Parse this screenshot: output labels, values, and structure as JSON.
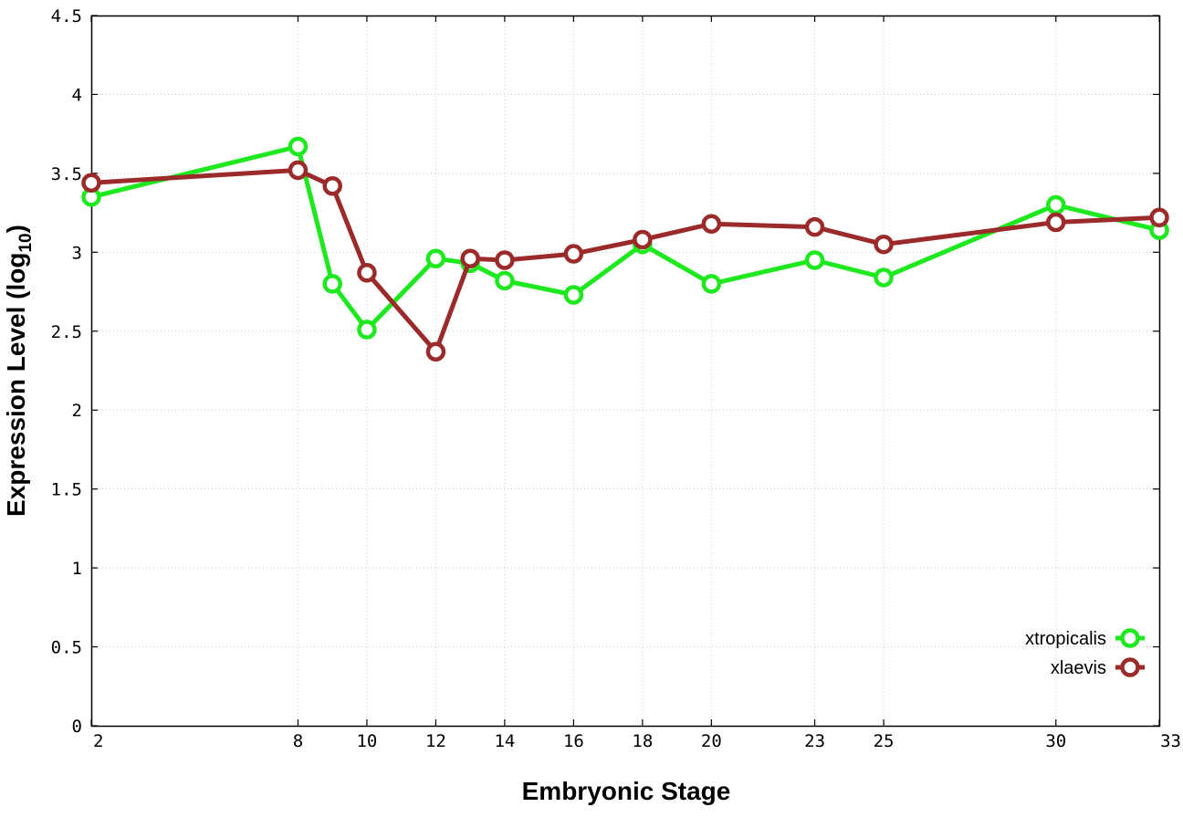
{
  "chart_data": {
    "type": "line",
    "xlabel": "Embryonic Stage",
    "ylabel": "Expression Level (log",
    "ylabel_subscript": "10",
    "ylabel_suffix": ")",
    "x_ticks": [
      "2",
      "8",
      "10",
      "12",
      "14",
      "16",
      "18",
      "20",
      "23",
      "25",
      "30",
      "33"
    ],
    "y_ticks": [
      "0",
      "0.5",
      "1",
      "1.5",
      "2",
      "2.5",
      "3",
      "3.5",
      "4",
      "4.5"
    ],
    "xlim": [
      2,
      33
    ],
    "ylim": [
      0,
      4.5
    ],
    "grid": true,
    "legend_position": "bottom-right",
    "series": [
      {
        "name": "xtropicalis",
        "color": "#1ee81e",
        "x": [
          2,
          8,
          9,
          10,
          12,
          13,
          14,
          16,
          18,
          20,
          23,
          25,
          30,
          33
        ],
        "y": [
          3.35,
          3.67,
          2.8,
          2.51,
          2.96,
          2.93,
          2.82,
          2.73,
          3.05,
          2.8,
          2.95,
          2.84,
          3.3,
          3.14
        ]
      },
      {
        "name": "xlaevis",
        "color": "#9b2a2a",
        "x": [
          2,
          8,
          9,
          10,
          12,
          13,
          14,
          16,
          18,
          20,
          23,
          25,
          30,
          33
        ],
        "y": [
          3.44,
          3.52,
          3.42,
          2.87,
          2.37,
          2.96,
          2.95,
          2.99,
          3.08,
          3.18,
          3.16,
          3.05,
          3.19,
          3.22
        ]
      }
    ]
  }
}
